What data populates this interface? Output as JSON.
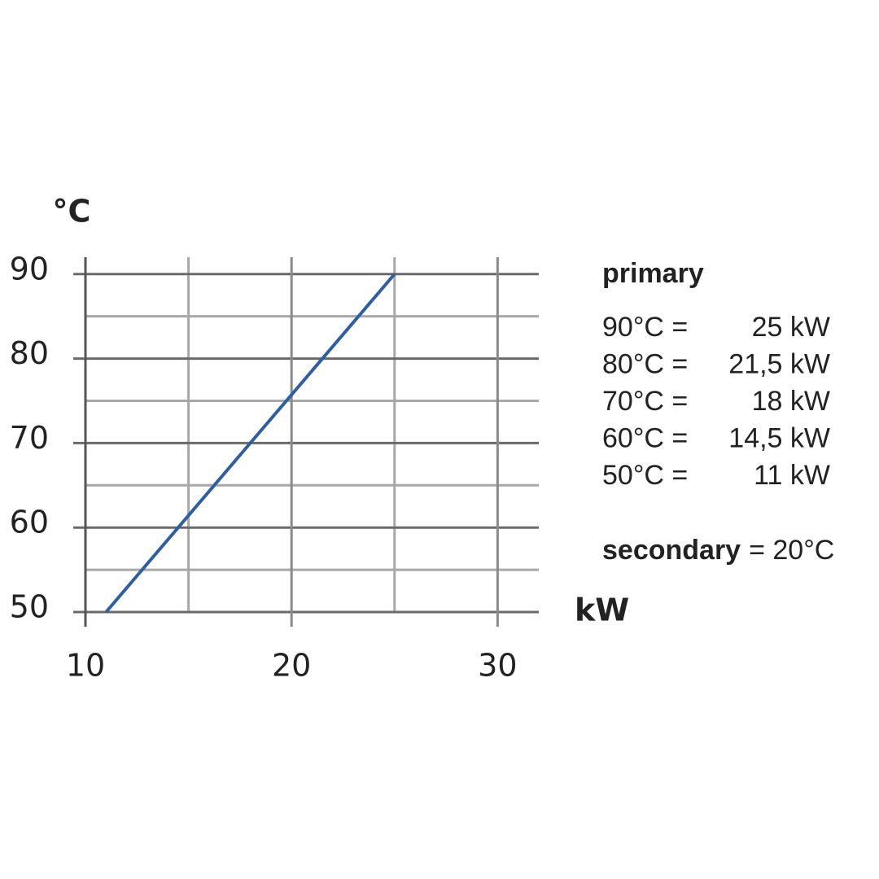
{
  "chart_data": {
    "type": "line",
    "y_label": "°C",
    "x_label": "kW",
    "x": [
      11,
      14.5,
      18,
      21.5,
      25
    ],
    "series": [
      {
        "values": [
          50,
          60,
          70,
          80,
          90
        ],
        "color": "#2f5f9c"
      }
    ],
    "xlim": [
      10,
      32
    ],
    "ylim": [
      50,
      92
    ],
    "xticks": [
      10,
      20,
      30
    ],
    "yticks": [
      50,
      60,
      70,
      80,
      90
    ],
    "x_minor_ticks": [
      15,
      25
    ],
    "y_minor_ticks": [
      55,
      65,
      75,
      85
    ],
    "grid": true,
    "annotation": {
      "heading": "primary",
      "rows": [
        [
          "90°C =",
          "25 kW"
        ],
        [
          "80°C =",
          "21,5 kW"
        ],
        [
          "70°C =",
          "18 kW"
        ],
        [
          "60°C =",
          "14,5 kW"
        ],
        [
          "50°C =",
          "11 kW"
        ]
      ],
      "secondary_label": "secondary",
      "secondary_value": "= 20°C"
    }
  }
}
